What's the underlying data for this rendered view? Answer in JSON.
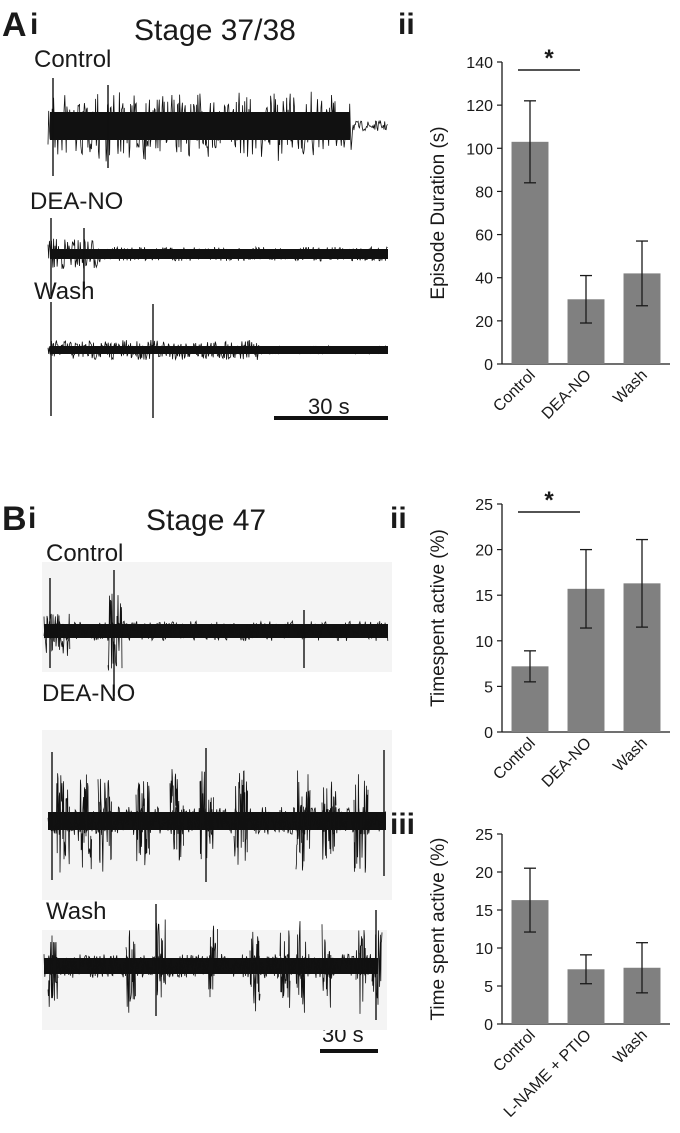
{
  "figure": {
    "panel_A": {
      "letter": "A",
      "sub_i": "i",
      "sub_ii": "ii",
      "stage_title": "Stage 37/38",
      "traces": [
        "Control",
        "DEA-NO",
        "Wash"
      ],
      "scalebar": "30 s"
    },
    "panel_B": {
      "letter": "B",
      "sub_i": "i",
      "sub_ii": "ii",
      "sub_iii": "iii",
      "stage_title": "Stage  47",
      "traces": [
        "Control",
        "DEA-NO",
        "Wash"
      ],
      "scalebar": "30 s"
    }
  },
  "colors": {
    "bar_fill": "#808080",
    "trace": "#111111",
    "trace_bg_B": "#f4f4f4",
    "axis": "#1a1a1a"
  },
  "chart_data": [
    {
      "id": "Aii",
      "type": "bar",
      "categories": [
        "Control",
        "DEA-NO",
        "Wash"
      ],
      "values": [
        103,
        30,
        42
      ],
      "errors": [
        19,
        11,
        15
      ],
      "ylabel": "Episode Duration (s)",
      "ylim": [
        0,
        140
      ],
      "yticks": [
        0,
        20,
        40,
        60,
        80,
        100,
        120,
        140
      ],
      "significance": {
        "from": 0,
        "to": 1,
        "label": "*"
      },
      "grid": false
    },
    {
      "id": "Bii",
      "type": "bar",
      "categories": [
        "Control",
        "DEA-NO",
        "Wash"
      ],
      "values": [
        7.2,
        15.7,
        16.3
      ],
      "errors": [
        1.7,
        4.3,
        4.8
      ],
      "ylabel": "Timespent active (%)",
      "ylim": [
        0,
        25
      ],
      "yticks": [
        0,
        5,
        10,
        15,
        20,
        25
      ],
      "significance": {
        "from": 0,
        "to": 1,
        "label": "*"
      },
      "grid": false
    },
    {
      "id": "Biii",
      "type": "bar",
      "categories": [
        "Control",
        "L-NAME + PTIO",
        "Wash"
      ],
      "values": [
        16.3,
        7.2,
        7.4
      ],
      "errors": [
        4.2,
        1.9,
        3.3
      ],
      "ylabel": "Time spent active (%)",
      "ylim": [
        0,
        25
      ],
      "yticks": [
        0,
        5,
        10,
        15,
        20,
        25
      ],
      "grid": false
    }
  ]
}
